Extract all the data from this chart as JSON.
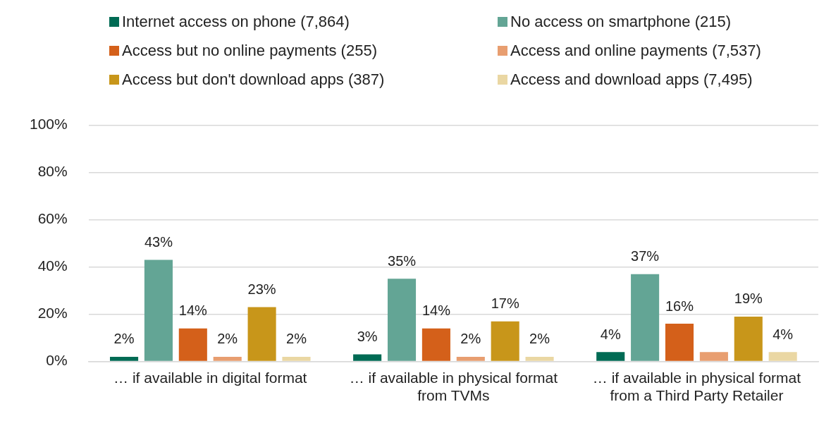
{
  "chart_data": {
    "type": "bar",
    "categories": [
      "… if available in digital format",
      "… if available in physical format from TVMs",
      "… if available in physical format from a Third Party Retailer"
    ],
    "series": [
      {
        "name": "Internet access on phone (7,864)",
        "color": "#006b54",
        "values": [
          2,
          3,
          4
        ],
        "value_labels": [
          "2%",
          "3%",
          "4%"
        ]
      },
      {
        "name": "No access on smartphone (215)",
        "color": "#63a595",
        "values": [
          43,
          35,
          37
        ],
        "value_labels": [
          "43%",
          "35%",
          "37%"
        ]
      },
      {
        "name": "Access but no online payments (255)",
        "color": "#d4601a",
        "values": [
          14,
          14,
          16
        ],
        "value_labels": [
          "14%",
          "14%",
          "16%"
        ]
      },
      {
        "name": "Access and online payments (7,537)",
        "color": "#e89e70",
        "values": [
          2,
          2,
          4
        ],
        "value_labels": [
          "2%",
          "2%",
          null
        ]
      },
      {
        "name": "Access but don't download apps (387)",
        "color": "#c8961a",
        "values": [
          23,
          17,
          19
        ],
        "value_labels": [
          "23%",
          "17%",
          "19%"
        ]
      },
      {
        "name": "Access and download apps (7,495)",
        "color": "#ead7a3",
        "values": [
          2,
          2,
          4
        ],
        "value_labels": [
          "2%",
          "2%",
          "4%"
        ]
      }
    ],
    "ylim": [
      0,
      100
    ],
    "yticks": [
      {
        "value": 0,
        "label": "0%"
      },
      {
        "value": 20,
        "label": "20%"
      },
      {
        "value": 40,
        "label": "40%"
      },
      {
        "value": 60,
        "label": "60%"
      },
      {
        "value": 80,
        "label": "80%"
      },
      {
        "value": 100,
        "label": "100%"
      }
    ],
    "grid": "y",
    "legend": "top"
  }
}
